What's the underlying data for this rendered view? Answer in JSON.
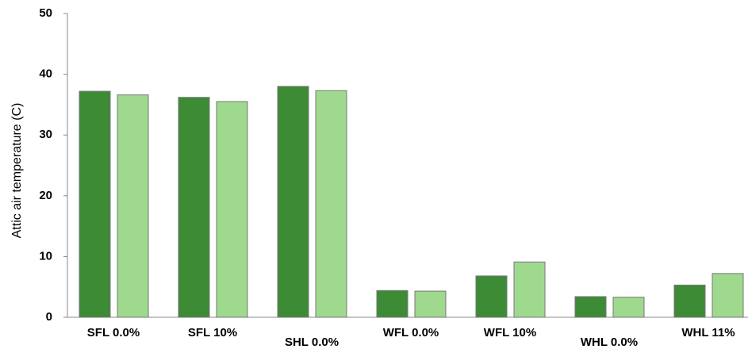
{
  "chart_data": {
    "type": "bar",
    "y_label": "Attic air temperature (C)",
    "categories": [
      "SFL 0.0%",
      "SFL 10%",
      "SHL 0.0%",
      "WFL 0.0%",
      "WFL 10%",
      "WHL 0.0%",
      "WHL 11%"
    ],
    "series": [
      {
        "color": "#3d8b35",
        "values": [
          37.2,
          36.2,
          38.0,
          4.4,
          6.8,
          3.4,
          5.3
        ]
      },
      {
        "color": "#9fd98e",
        "values": [
          36.6,
          35.5,
          37.3,
          4.3,
          9.1,
          3.3,
          7.2
        ]
      }
    ],
    "ylim": [
      0,
      50
    ],
    "yticks": [
      0,
      10,
      20,
      30,
      40,
      50
    ],
    "grid": false
  }
}
